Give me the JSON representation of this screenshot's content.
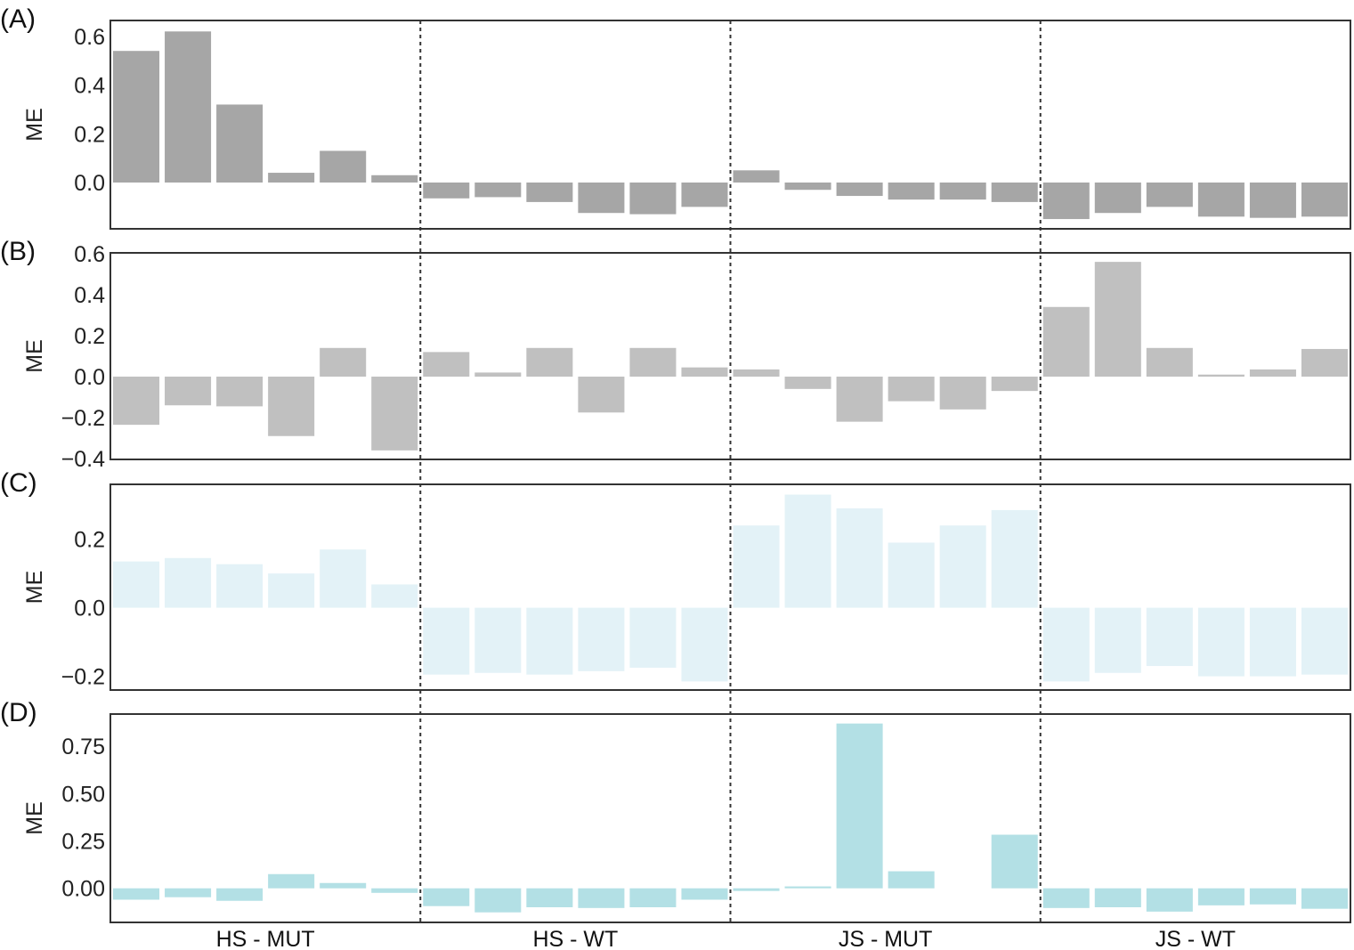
{
  "chart_data": [
    {
      "type": "bar",
      "panel_label": "(A)",
      "ylabel": "ME",
      "ylim": [
        -0.19,
        0.665
      ],
      "yticks": [
        "0.0",
        "0.2",
        "0.4",
        "0.6"
      ],
      "ytick_values": [
        0,
        0.2,
        0.4,
        0.6
      ],
      "color": "#a6a6a6",
      "values": [
        0.54,
        0.62,
        0.32,
        0.04,
        0.13,
        0.03,
        -0.065,
        -0.06,
        -0.08,
        -0.125,
        -0.13,
        -0.1,
        0.05,
        -0.03,
        -0.055,
        -0.07,
        -0.07,
        -0.08,
        -0.15,
        -0.125,
        -0.1,
        -0.14,
        -0.145,
        -0.14
      ]
    },
    {
      "type": "bar",
      "panel_label": "(B)",
      "ylabel": "ME",
      "ylim": [
        -0.404,
        0.604
      ],
      "yticks": [
        "−0.4",
        "−0.2",
        "0.0",
        "0.2",
        "0.4",
        "0.6"
      ],
      "ytick_values": [
        -0.4,
        -0.2,
        0,
        0.2,
        0.4,
        0.6
      ],
      "color": "#c0c0c0",
      "values": [
        -0.235,
        -0.14,
        -0.145,
        -0.29,
        0.14,
        -0.36,
        0.12,
        0.02,
        0.14,
        -0.175,
        0.14,
        0.045,
        0.035,
        -0.06,
        -0.22,
        -0.12,
        -0.16,
        -0.07,
        0.34,
        0.56,
        0.14,
        0.01,
        0.035,
        0.135
      ]
    },
    {
      "type": "bar",
      "panel_label": "(C)",
      "ylabel": "ME",
      "ylim": [
        -0.24,
        0.36
      ],
      "yticks": [
        "−0.2",
        "0.0",
        "0.2"
      ],
      "ytick_values": [
        -0.2,
        0,
        0.2
      ],
      "color": "#e3f2f7",
      "values": [
        0.135,
        0.145,
        0.127,
        0.1,
        0.17,
        0.068,
        -0.195,
        -0.19,
        -0.195,
        -0.185,
        -0.175,
        -0.215,
        0.24,
        0.33,
        0.29,
        0.19,
        0.24,
        0.285,
        -0.215,
        -0.19,
        -0.17,
        -0.2,
        -0.2,
        -0.195
      ]
    },
    {
      "type": "bar",
      "panel_label": "(D)",
      "ylabel": "ME",
      "ylim": [
        -0.18,
        0.92
      ],
      "yticks": [
        "0.00",
        "0.25",
        "0.50",
        "0.75"
      ],
      "ytick_values": [
        0,
        0.25,
        0.5,
        0.75
      ],
      "color": "#b3e0e5",
      "values": [
        -0.06,
        -0.047,
        -0.066,
        0.075,
        0.028,
        -0.024,
        -0.094,
        -0.127,
        -0.1,
        -0.104,
        -0.1,
        -0.06,
        -0.014,
        0.01,
        0.87,
        0.09,
        0.0,
        0.283,
        -0.104,
        -0.1,
        -0.123,
        -0.09,
        -0.085,
        -0.108
      ]
    }
  ],
  "groups": [
    "HS - MUT",
    "HS - WT",
    "JS - MUT",
    "JS - WT"
  ],
  "bars_per_group": 6
}
